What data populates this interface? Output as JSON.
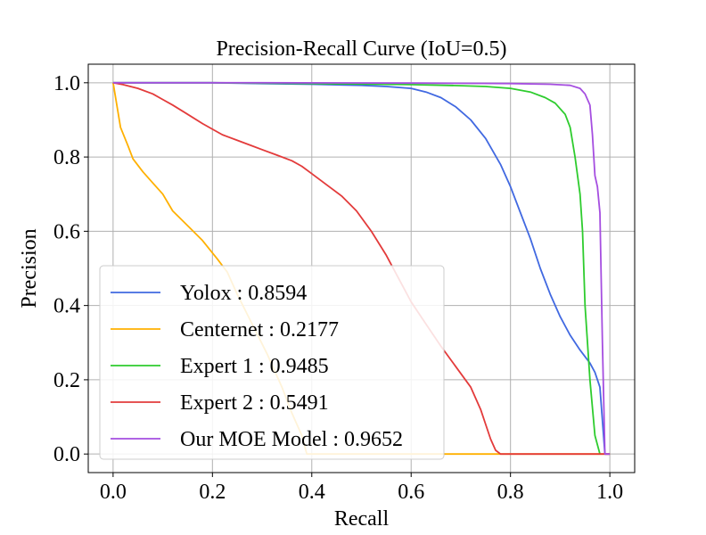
{
  "chart_data": {
    "type": "line",
    "title": "Precision-Recall Curve (IoU=0.5)",
    "xlabel": "Recall",
    "ylabel": "Precision",
    "xlim": [
      -0.05,
      1.05
    ],
    "ylim": [
      -0.05,
      1.05
    ],
    "grid": true,
    "legend_position": "lower-left",
    "x_ticks": [
      {
        "value": 0.0,
        "label": "0.0"
      },
      {
        "value": 0.2,
        "label": "0.2"
      },
      {
        "value": 0.4,
        "label": "0.4"
      },
      {
        "value": 0.6,
        "label": "0.6"
      },
      {
        "value": 0.8,
        "label": "0.8"
      },
      {
        "value": 1.0,
        "label": "1.0"
      }
    ],
    "y_ticks": [
      {
        "value": 0.0,
        "label": "0.0"
      },
      {
        "value": 0.2,
        "label": "0.2"
      },
      {
        "value": 0.4,
        "label": "0.4"
      },
      {
        "value": 0.6,
        "label": "0.6"
      },
      {
        "value": 0.8,
        "label": "0.8"
      },
      {
        "value": 1.0,
        "label": "1.0"
      }
    ],
    "series": [
      {
        "name": "Yolox : 0.8594",
        "slug": "yolox",
        "color": "#4169e1",
        "x": [
          0,
          0.1,
          0.2,
          0.3,
          0.4,
          0.5,
          0.55,
          0.6,
          0.63,
          0.66,
          0.69,
          0.72,
          0.75,
          0.78,
          0.8,
          0.82,
          0.84,
          0.86,
          0.88,
          0.9,
          0.92,
          0.94,
          0.96,
          0.97,
          0.98,
          0.99,
          1.0
        ],
        "y": [
          1.0,
          1.0,
          1.0,
          0.998,
          0.996,
          0.993,
          0.99,
          0.985,
          0.975,
          0.96,
          0.935,
          0.9,
          0.85,
          0.78,
          0.72,
          0.65,
          0.58,
          0.5,
          0.43,
          0.37,
          0.32,
          0.28,
          0.245,
          0.22,
          0.18,
          0.0,
          0.0
        ]
      },
      {
        "name": "Centernet : 0.2177",
        "slug": "centernet",
        "color": "#ffb000",
        "x": [
          0,
          0.015,
          0.03,
          0.04,
          0.06,
          0.08,
          0.1,
          0.12,
          0.15,
          0.18,
          0.21,
          0.23,
          0.25,
          0.28,
          0.31,
          0.34,
          0.36,
          0.38,
          0.39,
          0.5,
          0.6,
          0.7,
          0.8,
          0.9,
          1.0
        ],
        "y": [
          1.0,
          0.88,
          0.83,
          0.795,
          0.76,
          0.73,
          0.7,
          0.655,
          0.615,
          0.575,
          0.525,
          0.49,
          0.43,
          0.35,
          0.27,
          0.18,
          0.11,
          0.05,
          0.0,
          0.0,
          0.0,
          0.0,
          0.0,
          0.0,
          0.0
        ]
      },
      {
        "name": "Expert 1 : 0.9485",
        "slug": "expert1",
        "color": "#2ecc2e",
        "x": [
          0,
          0.2,
          0.4,
          0.6,
          0.7,
          0.75,
          0.8,
          0.84,
          0.87,
          0.89,
          0.91,
          0.92,
          0.93,
          0.94,
          0.945,
          0.95,
          0.96,
          0.97,
          0.98
        ],
        "y": [
          1.0,
          1.0,
          0.998,
          0.995,
          0.992,
          0.99,
          0.985,
          0.975,
          0.96,
          0.945,
          0.915,
          0.88,
          0.8,
          0.7,
          0.6,
          0.4,
          0.2,
          0.05,
          0.0
        ]
      },
      {
        "name": "Expert 2 : 0.5491",
        "slug": "expert2",
        "color": "#e33b3b",
        "x": [
          0,
          0.02,
          0.05,
          0.08,
          0.1,
          0.12,
          0.15,
          0.18,
          0.2,
          0.22,
          0.25,
          0.28,
          0.3,
          0.33,
          0.36,
          0.38,
          0.4,
          0.43,
          0.46,
          0.49,
          0.52,
          0.55,
          0.58,
          0.6,
          0.63,
          0.66,
          0.69,
          0.72,
          0.74,
          0.75,
          0.76,
          0.77,
          0.78,
          0.8,
          0.9,
          1.0
        ],
        "y": [
          1.0,
          0.995,
          0.985,
          0.97,
          0.955,
          0.94,
          0.915,
          0.89,
          0.875,
          0.86,
          0.845,
          0.83,
          0.82,
          0.805,
          0.79,
          0.775,
          0.755,
          0.725,
          0.695,
          0.655,
          0.6,
          0.535,
          0.46,
          0.41,
          0.35,
          0.29,
          0.235,
          0.18,
          0.12,
          0.08,
          0.04,
          0.01,
          0.0,
          0.0,
          0.0,
          0.0
        ]
      },
      {
        "name": "Our MOE Model : 0.9652",
        "slug": "moe",
        "color": "#a54ee0",
        "x": [
          0,
          0.3,
          0.6,
          0.8,
          0.88,
          0.92,
          0.94,
          0.95,
          0.96,
          0.965,
          0.97,
          0.975,
          0.98,
          0.985,
          0.99,
          1.0
        ],
        "y": [
          1.0,
          1.0,
          0.999,
          0.998,
          0.996,
          0.993,
          0.985,
          0.97,
          0.94,
          0.86,
          0.75,
          0.72,
          0.65,
          0.3,
          0.0,
          0.0
        ]
      }
    ]
  }
}
